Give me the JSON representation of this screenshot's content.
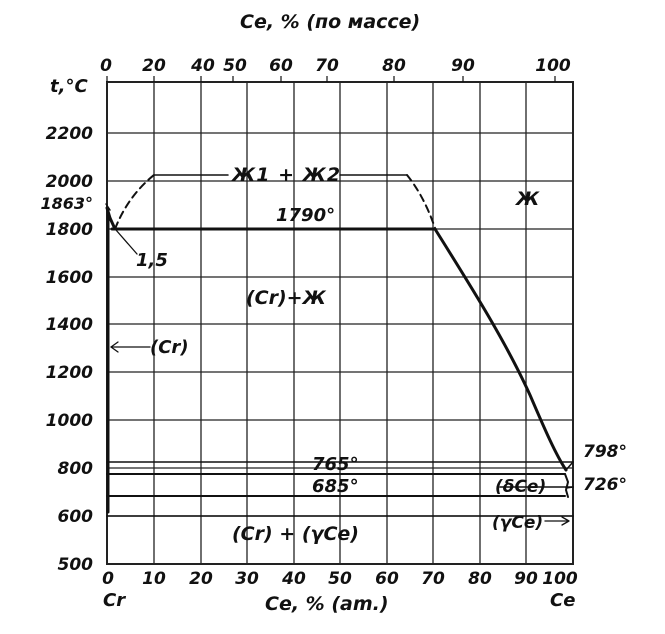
{
  "top_axis": {
    "title": "Ce, % (по  массе)",
    "ticks": [
      "0",
      "20",
      "40",
      "50",
      "60",
      "70",
      "80",
      "90",
      "100"
    ]
  },
  "bottom_axis": {
    "title": "Ce, % (am.)",
    "ticks": [
      "0",
      "10",
      "20",
      "30",
      "40",
      "50",
      "60",
      "70",
      "80",
      "90",
      "100"
    ],
    "left_element": "Cr",
    "right_element": "Ce"
  },
  "y_axis": {
    "title": "t,°C",
    "ticks": [
      "2200",
      "2000",
      "1800",
      "1600",
      "1400",
      "1200",
      "1000",
      "800",
      "600",
      "500"
    ],
    "extra_label": "1863°"
  },
  "labels": {
    "two_liquids": "Ж1 + Ж2",
    "liquid": "Ж",
    "monotectic": "1790°",
    "monotectic_comp": "1,5",
    "cr_plus_liquid": "(Cr)+Ж",
    "cr_solid": "(Cr)",
    "t765": "765°",
    "t685": "685°",
    "t798": "798°",
    "t726": "726°",
    "delta_ce": "(δCe)",
    "gamma_ce": "(γCe)",
    "cr_plus_gamma": "(Cr) + (γCe)"
  },
  "colors": {
    "line": "#111111",
    "grid": "#222222"
  }
}
